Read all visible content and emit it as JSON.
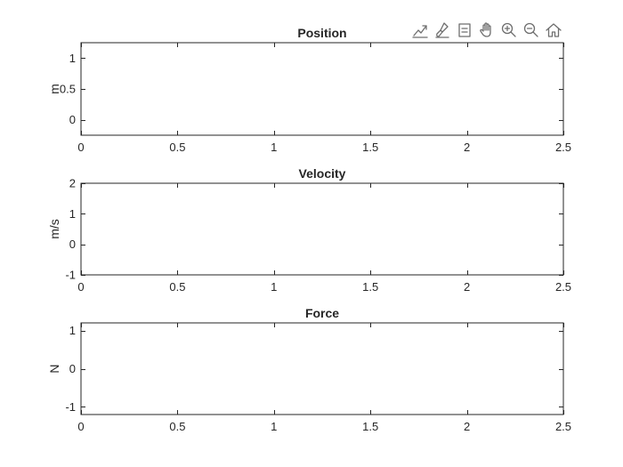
{
  "toolbar": {
    "items": [
      "data-tips-icon",
      "brush-icon",
      "legend-icon",
      "pan-icon",
      "zoom-in-icon",
      "zoom-out-icon",
      "home-icon"
    ]
  },
  "chart_data": [
    {
      "type": "line",
      "title": "Position",
      "xlabel": "",
      "ylabel": "m",
      "xlim": [
        0,
        2.5
      ],
      "ylim": [
        -0.25,
        1.25
      ],
      "xticks": [
        "0",
        "0.5",
        "1",
        "1.5",
        "2",
        "2.5"
      ],
      "xtick_values": [
        0,
        0.5,
        1,
        1.5,
        2,
        2.5
      ],
      "yticks": [
        "0",
        "0.5",
        "1"
      ],
      "ytick_values": [
        0,
        0.5,
        1
      ],
      "series": [],
      "grid": false
    },
    {
      "type": "line",
      "title": "Velocity",
      "xlabel": "",
      "ylabel": "m/s",
      "xlim": [
        0,
        2.5
      ],
      "ylim": [
        -1,
        2
      ],
      "xticks": [
        "0",
        "0.5",
        "1",
        "1.5",
        "2",
        "2.5"
      ],
      "xtick_values": [
        0,
        0.5,
        1,
        1.5,
        2,
        2.5
      ],
      "yticks": [
        "-1",
        "0",
        "1",
        "2"
      ],
      "ytick_values": [
        -1,
        0,
        1,
        2
      ],
      "series": [],
      "grid": false
    },
    {
      "type": "line",
      "title": "Force",
      "xlabel": "",
      "ylabel": "N",
      "xlim": [
        0,
        2.5
      ],
      "ylim": [
        -1.2,
        1.2
      ],
      "xticks": [
        "0",
        "0.5",
        "1",
        "1.5",
        "2",
        "2.5"
      ],
      "xtick_values": [
        0,
        0.5,
        1,
        1.5,
        2,
        2.5
      ],
      "yticks": [
        "-1",
        "0",
        "1"
      ],
      "ytick_values": [
        -1,
        0,
        1
      ],
      "series": [],
      "grid": false
    }
  ]
}
